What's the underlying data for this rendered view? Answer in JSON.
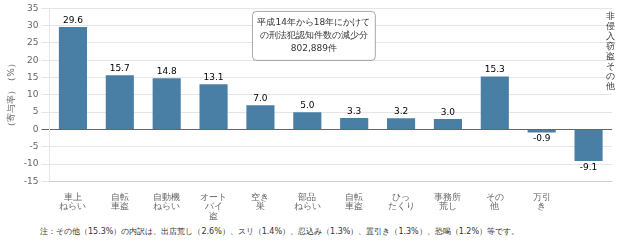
{
  "chart_data": {
    "type": "bar",
    "categories": [
      "車上\nねらい",
      "自転\n車盗",
      "自動機\nねらい",
      "オート\nバイ\n盗",
      "空き\n巣",
      "部品\nねらい",
      "自転\n車盗",
      "ひっ\nたくり",
      "事務所\n荒し",
      "その\n他",
      "万引\nき",
      null
    ],
    "values": [
      29.6,
      15.7,
      14.8,
      13.1,
      7.0,
      5.0,
      3.3,
      3.2,
      3.0,
      15.3,
      -0.9,
      -9.1
    ],
    "value_labels": [
      "29.6",
      "15.7",
      "14.8",
      "13.1",
      "7.0",
      "5.0",
      "3.3",
      "3.2",
      "3.0",
      "15.3",
      "-0.9",
      "-9.1"
    ],
    "color": "#4a7fa5",
    "ylabel": "（寄与率）（%）",
    "ylim": [
      -15,
      35
    ],
    "yticks": [
      -15,
      -10,
      -5,
      0,
      5,
      10,
      15,
      20,
      25,
      30,
      35
    ],
    "grid": true,
    "data_labels": true,
    "annotations": [
      "平成14年から18年にかけて\nの刑法犯認知件数の減少分\n802,889件",
      "非\n侵\n入\n窃\n盗\nそ\nの\n他",
      "注：その他（15.3%）の内訳は、出店荒し（2.6%）、スリ（1.4%）、忍込み（1.3%）、置引き（1.3%）、恐喝（1.2%）等です。"
    ]
  }
}
